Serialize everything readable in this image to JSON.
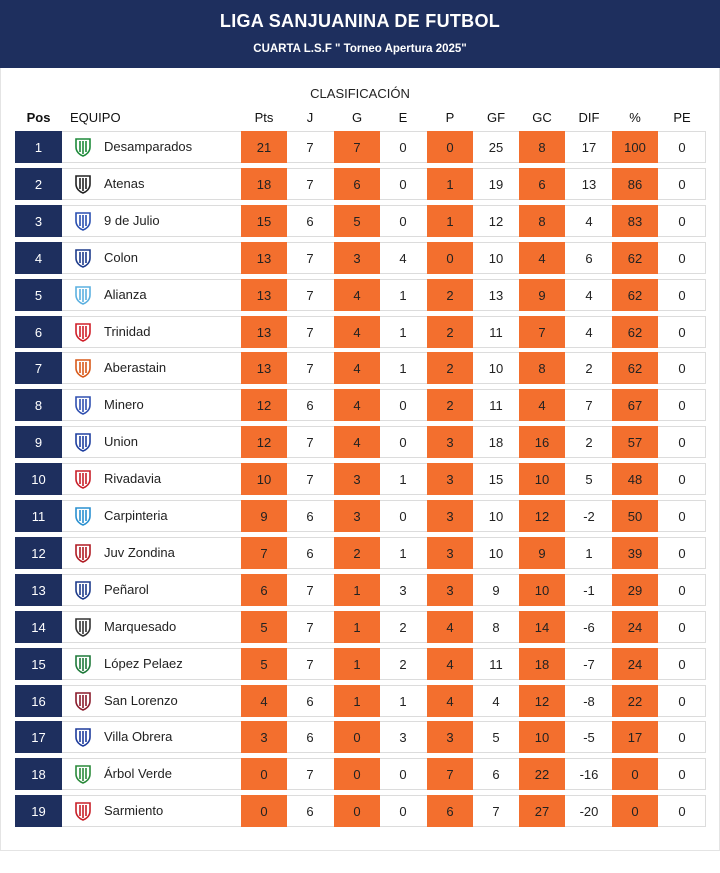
{
  "header": {
    "title": "LIGA SANJUANINA DE FUTBOL",
    "subtitle": "CUARTA L.S.F \" Torneo Apertura 2025\""
  },
  "section_title": "CLASIFICACIÓN",
  "columns": {
    "pos": "Pos",
    "team": "EQUIPO",
    "pts": "Pts",
    "j": "J",
    "g": "G",
    "e": "E",
    "p": "P",
    "gf": "GF",
    "gc": "GC",
    "dif": "DIF",
    "pct": "%",
    "pe": "PE"
  },
  "colors": {
    "navy": "#1e2f5e",
    "orange": "#f36f2e"
  },
  "rows": [
    {
      "pos": "1",
      "team": "Desamparados",
      "pts": "21",
      "j": "7",
      "g": "7",
      "e": "0",
      "p": "0",
      "gf": "25",
      "gc": "8",
      "dif": "17",
      "pct": "100",
      "pe": "0",
      "crest": "#1e8a3a"
    },
    {
      "pos": "2",
      "team": "Atenas",
      "pts": "18",
      "j": "7",
      "g": "6",
      "e": "0",
      "p": "1",
      "gf": "19",
      "gc": "6",
      "dif": "13",
      "pct": "86",
      "pe": "0",
      "crest": "#222222"
    },
    {
      "pos": "3",
      "team": "9 de Julio",
      "pts": "15",
      "j": "6",
      "g": "5",
      "e": "0",
      "p": "1",
      "gf": "12",
      "gc": "8",
      "dif": "4",
      "pct": "83",
      "pe": "0",
      "crest": "#2a4fb0"
    },
    {
      "pos": "4",
      "team": "Colon",
      "pts": "13",
      "j": "7",
      "g": "3",
      "e": "4",
      "p": "0",
      "gf": "10",
      "gc": "4",
      "dif": "6",
      "pct": "62",
      "pe": "0",
      "crest": "#1e3c8c"
    },
    {
      "pos": "5",
      "team": "Alianza",
      "pts": "13",
      "j": "7",
      "g": "4",
      "e": "1",
      "p": "2",
      "gf": "13",
      "gc": "9",
      "dif": "4",
      "pct": "62",
      "pe": "0",
      "crest": "#5bb0e0"
    },
    {
      "pos": "6",
      "team": "Trinidad",
      "pts": "13",
      "j": "7",
      "g": "4",
      "e": "1",
      "p": "2",
      "gf": "11",
      "gc": "7",
      "dif": "4",
      "pct": "62",
      "pe": "0",
      "crest": "#d0202a"
    },
    {
      "pos": "7",
      "team": "Aberastain",
      "pts": "13",
      "j": "7",
      "g": "4",
      "e": "1",
      "p": "2",
      "gf": "10",
      "gc": "8",
      "dif": "2",
      "pct": "62",
      "pe": "0",
      "crest": "#d85a1a"
    },
    {
      "pos": "8",
      "team": "Minero",
      "pts": "12",
      "j": "6",
      "g": "4",
      "e": "0",
      "p": "2",
      "gf": "11",
      "gc": "4",
      "dif": "7",
      "pct": "67",
      "pe": "0",
      "crest": "#3050b0"
    },
    {
      "pos": "9",
      "team": "Union",
      "pts": "12",
      "j": "7",
      "g": "4",
      "e": "0",
      "p": "3",
      "gf": "18",
      "gc": "16",
      "dif": "2",
      "pct": "57",
      "pe": "0",
      "crest": "#2040a0"
    },
    {
      "pos": "10",
      "team": "Rivadavia",
      "pts": "10",
      "j": "7",
      "g": "3",
      "e": "1",
      "p": "3",
      "gf": "15",
      "gc": "10",
      "dif": "5",
      "pct": "48",
      "pe": "0",
      "crest": "#c8202a"
    },
    {
      "pos": "11",
      "team": "Carpinteria",
      "pts": "9",
      "j": "6",
      "g": "3",
      "e": "0",
      "p": "3",
      "gf": "10",
      "gc": "12",
      "dif": "-2",
      "pct": "50",
      "pe": "0",
      "crest": "#2a90d0"
    },
    {
      "pos": "12",
      "team": "Juv Zondina",
      "pts": "7",
      "j": "6",
      "g": "2",
      "e": "1",
      "p": "3",
      "gf": "10",
      "gc": "9",
      "dif": "1",
      "pct": "39",
      "pe": "0",
      "crest": "#b01c24"
    },
    {
      "pos": "13",
      "team": "Peñarol",
      "pts": "6",
      "j": "7",
      "g": "1",
      "e": "3",
      "p": "3",
      "gf": "9",
      "gc": "10",
      "dif": "-1",
      "pct": "29",
      "pe": "0",
      "crest": "#1e3c8c"
    },
    {
      "pos": "14",
      "team": "Marquesado",
      "pts": "5",
      "j": "7",
      "g": "1",
      "e": "2",
      "p": "4",
      "gf": "8",
      "gc": "14",
      "dif": "-6",
      "pct": "24",
      "pe": "0",
      "crest": "#333333"
    },
    {
      "pos": "15",
      "team": "López Pelaez",
      "pts": "5",
      "j": "7",
      "g": "1",
      "e": "2",
      "p": "4",
      "gf": "11",
      "gc": "18",
      "dif": "-7",
      "pct": "24",
      "pe": "0",
      "crest": "#1f7a3a"
    },
    {
      "pos": "16",
      "team": "San Lorenzo",
      "pts": "4",
      "j": "6",
      "g": "1",
      "e": "1",
      "p": "4",
      "gf": "4",
      "gc": "12",
      "dif": "-8",
      "pct": "22",
      "pe": "0",
      "crest": "#8a1c2c"
    },
    {
      "pos": "17",
      "team": "Villa Obrera",
      "pts": "3",
      "j": "6",
      "g": "0",
      "e": "3",
      "p": "3",
      "gf": "5",
      "gc": "10",
      "dif": "-5",
      "pct": "17",
      "pe": "0",
      "crest": "#1e3c9c"
    },
    {
      "pos": "18",
      "team": "Árbol Verde",
      "pts": "0",
      "j": "7",
      "g": "0",
      "e": "0",
      "p": "7",
      "gf": "6",
      "gc": "22",
      "dif": "-16",
      "pct": "0",
      "pe": "0",
      "crest": "#2a8a3a"
    },
    {
      "pos": "19",
      "team": "Sarmiento",
      "pts": "0",
      "j": "6",
      "g": "0",
      "e": "0",
      "p": "6",
      "gf": "7",
      "gc": "27",
      "dif": "-20",
      "pct": "0",
      "pe": "0",
      "crest": "#c82028"
    }
  ]
}
